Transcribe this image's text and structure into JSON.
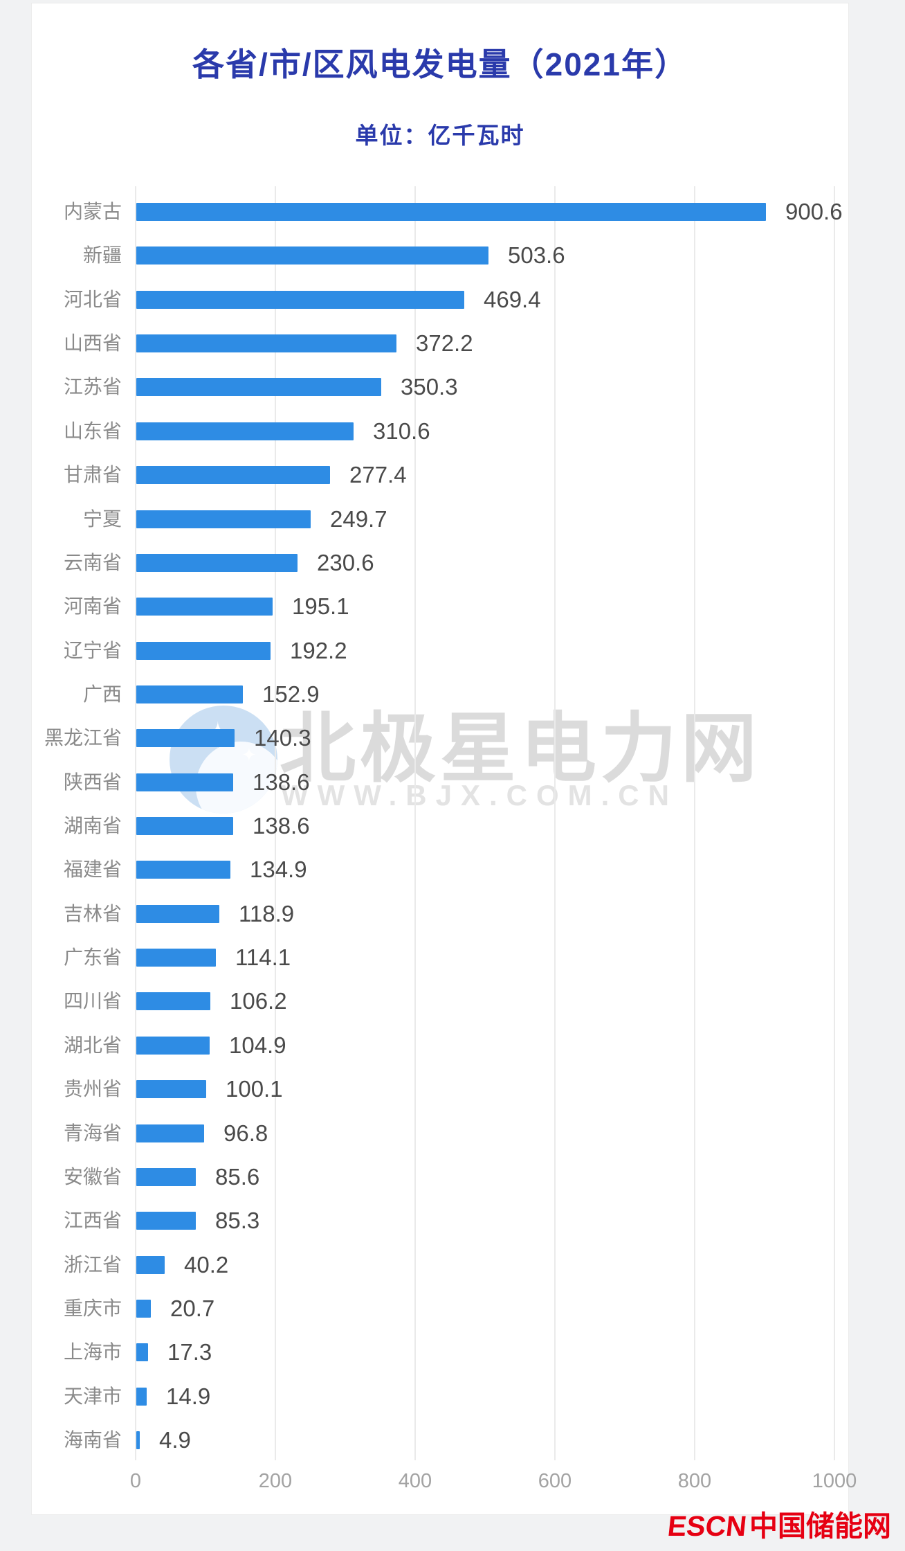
{
  "header": {
    "title": "各省/市/区风电发电量（2021年）",
    "subtitle": "单位：亿千瓦时",
    "title_color": "#2a3aab"
  },
  "chart_data": {
    "type": "bar",
    "orientation": "horizontal",
    "title": "各省/市/区风电发电量（2021年）",
    "unit": "亿千瓦时",
    "categories": [
      "内蒙古",
      "新疆",
      "河北省",
      "山西省",
      "江苏省",
      "山东省",
      "甘肃省",
      "宁夏",
      "云南省",
      "河南省",
      "辽宁省",
      "广西",
      "黑龙江省",
      "陕西省",
      "湖南省",
      "福建省",
      "吉林省",
      "广东省",
      "四川省",
      "湖北省",
      "贵州省",
      "青海省",
      "安徽省",
      "江西省",
      "浙江省",
      "重庆市",
      "上海市",
      "天津市",
      "海南省"
    ],
    "values": [
      900.6,
      503.6,
      469.4,
      372.2,
      350.3,
      310.6,
      277.4,
      249.7,
      230.6,
      195.1,
      192.2,
      152.9,
      140.3,
      138.6,
      138.6,
      134.9,
      118.9,
      114.1,
      106.2,
      104.9,
      100.1,
      96.8,
      85.6,
      85.3,
      40.2,
      20.7,
      17.3,
      14.9,
      4.9
    ],
    "xlim": [
      0,
      1000
    ],
    "x_ticks": [
      0,
      200,
      400,
      600,
      800,
      1000
    ],
    "grid": true,
    "legend": "none",
    "bar_color": "#2e8ce4",
    "value_label_color": "#4a4a4a",
    "category_label_color": "#8a8a8a",
    "tick_label_color": "#a3a3a3"
  },
  "watermark": {
    "logo_text": "北极星电力网",
    "url_text": "WWW.BJX.COM.CN"
  },
  "footer_logo": {
    "escn": "ESCN",
    "site_name": "中国储能网",
    "color": "#e60012"
  }
}
